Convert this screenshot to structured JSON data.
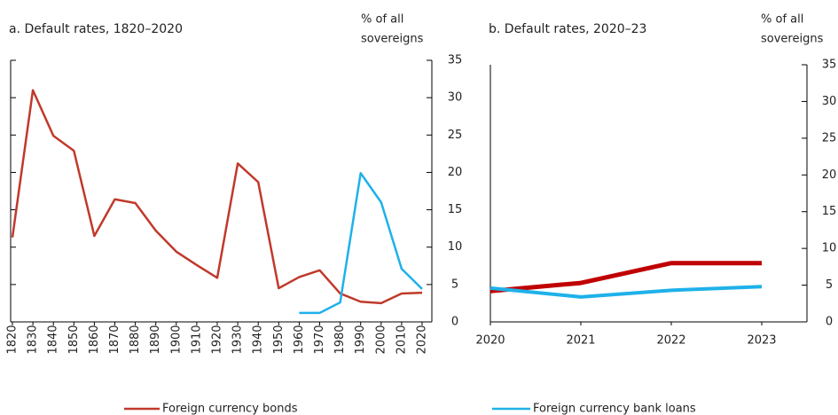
{
  "chart_data": [
    {
      "type": "line",
      "title": "a. Default rates, 1820–2020",
      "ylabel": [
        "% of all",
        "sovereigns"
      ],
      "x": [
        1820,
        1830,
        1840,
        1850,
        1860,
        1870,
        1880,
        1890,
        1900,
        1910,
        1920,
        1930,
        1940,
        1950,
        1960,
        1970,
        1980,
        1990,
        2000,
        2010,
        2020
      ],
      "xlim": [
        1820,
        2020
      ],
      "xticks": [
        1820,
        1830,
        1840,
        1850,
        1860,
        1870,
        1880,
        1890,
        1900,
        1910,
        1920,
        1930,
        1940,
        1950,
        1960,
        1970,
        1980,
        1990,
        2000,
        2010,
        2020
      ],
      "ylim": [
        0,
        35
      ],
      "yticks": [
        0,
        5,
        10,
        15,
        20,
        25,
        30,
        35
      ],
      "series": [
        {
          "name": "Foreign currency bonds",
          "color": "#c0392b",
          "width": 2.5,
          "values": [
            11.3,
            31,
            24.9,
            22.9,
            11.5,
            16.4,
            15.9,
            12.2,
            9.4,
            7.6,
            5.9,
            21.2,
            18.7,
            4.5,
            6.0,
            6.9,
            3.8,
            2.7,
            2.5,
            3.8,
            3.9
          ]
        },
        {
          "name": "Foreign currency bank loans",
          "color": "#1eb1ea",
          "width": 2.5,
          "values": [
            null,
            null,
            null,
            null,
            null,
            null,
            null,
            null,
            null,
            null,
            null,
            null,
            null,
            null,
            1.2,
            1.2,
            2.6,
            19.9,
            16.0,
            7.1,
            4.4
          ]
        }
      ]
    },
    {
      "type": "line",
      "title": "b. Default rates, 2020–23",
      "ylabel": [
        "% of all",
        "sovereigns"
      ],
      "x": [
        2020,
        2021,
        2022,
        2023
      ],
      "xlim": [
        2020,
        2023
      ],
      "xticks": [
        2020,
        2021,
        2022,
        2023
      ],
      "ylim": [
        0,
        35
      ],
      "yticks": [
        0,
        5,
        10,
        15,
        20,
        25,
        30,
        35
      ],
      "series": [
        {
          "color": "#c00000",
          "width": 5,
          "values": [
            4.2,
            5.3,
            8.0,
            8.0
          ]
        },
        {
          "color": "#1eb1ea",
          "width": 4,
          "values": [
            4.6,
            3.4,
            4.3,
            4.8
          ]
        }
      ]
    }
  ]
}
